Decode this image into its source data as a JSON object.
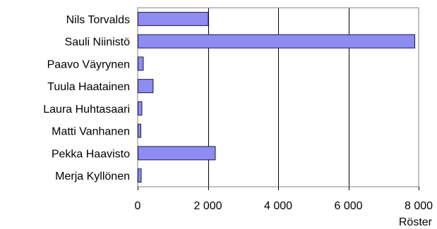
{
  "chart_data": {
    "type": "bar",
    "orientation": "horizontal",
    "categories": [
      "Nils Torvalds",
      "Sauli Niinistö",
      "Paavo Väyrynen",
      "Tuula Haatainen",
      "Laura Huhtasaari",
      "Matti Vanhanen",
      "Pekka Haavisto",
      "Merja Kyllönen"
    ],
    "values": [
      2000,
      7880,
      150,
      430,
      110,
      80,
      2200,
      90
    ],
    "xlabel": "Röster",
    "ylabel": "",
    "xlim": [
      0,
      8000
    ],
    "x_ticks": [
      0,
      2000,
      4000,
      6000,
      8000
    ],
    "x_tick_labels": [
      "0",
      "2 000",
      "4 000",
      "6 000",
      "8 000"
    ],
    "grid": "vertical",
    "colors": {
      "bar_fill": "#8c8cf2",
      "bar_stroke": "#1a1a40",
      "grid": "#000000",
      "frame": "#808080"
    }
  }
}
